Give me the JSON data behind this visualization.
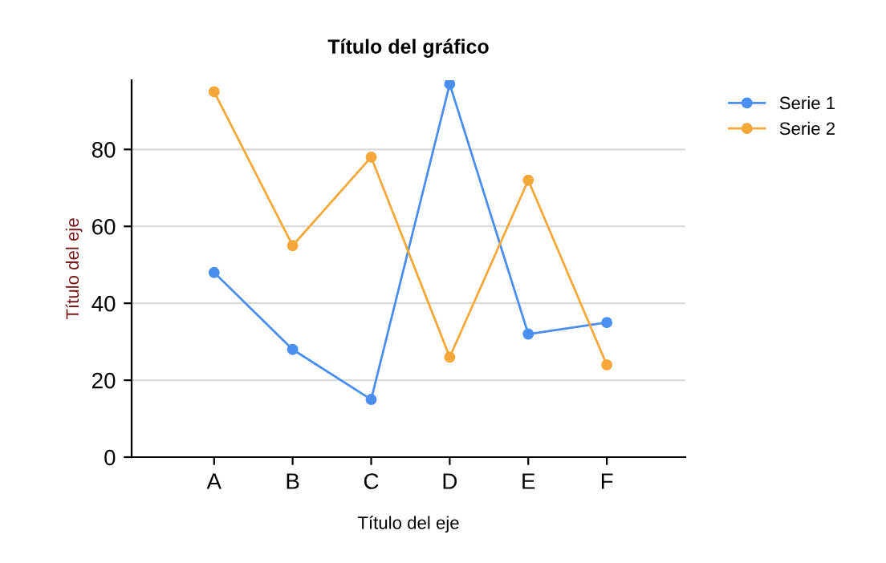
{
  "chart_data": {
    "type": "line",
    "title": "Título del gráfico",
    "xlabel": "Título del eje",
    "ylabel": "Título del eje",
    "categories": [
      "A",
      "B",
      "C",
      "D",
      "E",
      "F"
    ],
    "series": [
      {
        "name": "Serie 1",
        "color": "#4a8ef0",
        "values": [
          48,
          28,
          15,
          97,
          32,
          35
        ]
      },
      {
        "name": "Serie 2",
        "color": "#f5a83a",
        "values": [
          95,
          55,
          78,
          26,
          72,
          24
        ]
      }
    ],
    "ylim": [
      0,
      98
    ],
    "yticks": [
      0,
      20,
      40,
      60,
      80
    ],
    "grid": "y",
    "legend": "top right",
    "marker": "circle",
    "line_style": "solid"
  }
}
